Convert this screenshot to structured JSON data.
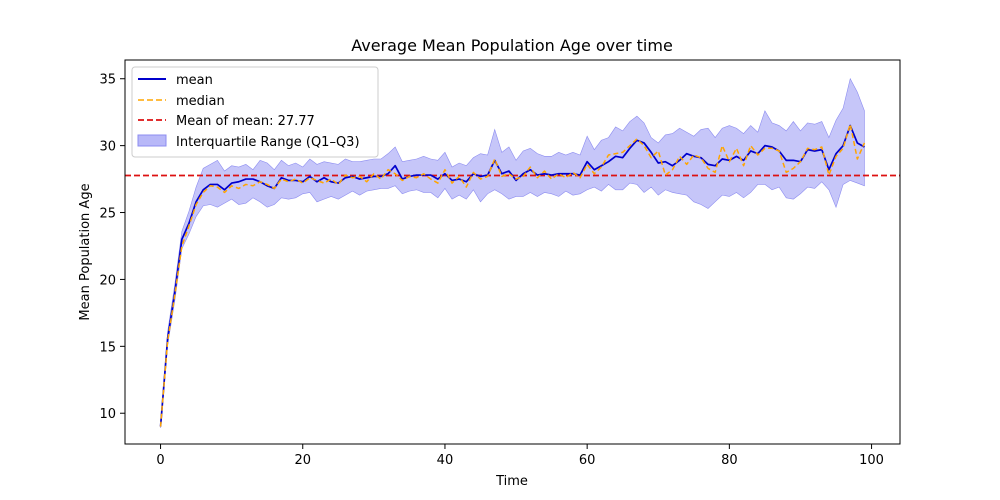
{
  "chart_data": {
    "type": "line",
    "title": "Average Mean Population Age over time",
    "xlabel": "Time",
    "ylabel": "Mean Population Age",
    "xlim": [
      -5,
      104
    ],
    "ylim": [
      7.7,
      36.4
    ],
    "x_ticks": [
      0,
      20,
      40,
      60,
      80,
      100
    ],
    "y_ticks": [
      10,
      15,
      20,
      25,
      30,
      35
    ],
    "grid": false,
    "legend_position": "upper-left",
    "legend": {
      "mean": "mean",
      "median": "median",
      "mean_of_mean": "Mean of mean: 27.77",
      "iqr": "Interquartile Range (Q1–Q3)"
    },
    "colors": {
      "mean": "#0000cc",
      "median": "#ffa500",
      "mean_of_mean": "#dd1111",
      "iqr_fill": "#b8b8f8",
      "iqr_edge": "#8c8cf0"
    },
    "mean_of_mean_value": 27.77,
    "x": [
      0,
      1,
      2,
      3,
      4,
      5,
      6,
      7,
      8,
      9,
      10,
      11,
      12,
      13,
      14,
      15,
      16,
      17,
      18,
      19,
      20,
      21,
      22,
      23,
      24,
      25,
      26,
      27,
      28,
      29,
      30,
      31,
      32,
      33,
      34,
      35,
      36,
      37,
      38,
      39,
      40,
      41,
      42,
      43,
      44,
      45,
      46,
      47,
      48,
      49,
      50,
      51,
      52,
      53,
      54,
      55,
      56,
      57,
      58,
      59,
      60,
      61,
      62,
      63,
      64,
      65,
      66,
      67,
      68,
      69,
      70,
      71,
      72,
      73,
      74,
      75,
      76,
      77,
      78,
      79,
      80,
      81,
      82,
      83,
      84,
      85,
      86,
      87,
      88,
      89,
      90,
      91,
      92,
      93,
      94,
      95,
      96,
      97,
      98,
      99
    ],
    "series": [
      {
        "name": "mean",
        "values": [
          9.0,
          15.6,
          19.0,
          23.0,
          24.2,
          25.8,
          26.7,
          27.1,
          27.1,
          26.7,
          27.2,
          27.3,
          27.5,
          27.5,
          27.3,
          27.0,
          26.8,
          27.6,
          27.4,
          27.4,
          27.3,
          27.7,
          27.3,
          27.6,
          27.3,
          27.2,
          27.6,
          27.7,
          27.5,
          27.6,
          27.7,
          27.7,
          27.9,
          28.5,
          27.5,
          27.7,
          27.8,
          27.8,
          27.8,
          27.5,
          27.9,
          27.4,
          27.5,
          27.3,
          27.9,
          27.7,
          27.8,
          28.9,
          27.9,
          28.1,
          27.4,
          27.9,
          28.2,
          27.8,
          27.9,
          27.8,
          27.9,
          27.9,
          27.9,
          27.8,
          28.8,
          28.2,
          28.5,
          28.8,
          29.2,
          29.1,
          29.8,
          30.4,
          30.2,
          29.5,
          28.7,
          28.8,
          28.5,
          28.9,
          29.4,
          29.2,
          29.1,
          28.6,
          28.5,
          29.0,
          28.9,
          29.2,
          28.9,
          29.6,
          29.4,
          30.0,
          29.9,
          29.6,
          28.9,
          28.9,
          28.8,
          29.7,
          29.6,
          29.7,
          28.2,
          29.4,
          30.0,
          31.5,
          30.2,
          29.9
        ]
      },
      {
        "name": "median",
        "values": [
          9.0,
          15.4,
          18.8,
          22.5,
          24.0,
          25.6,
          26.5,
          27.0,
          26.9,
          26.5,
          27.0,
          26.8,
          27.1,
          27.0,
          27.3,
          27.1,
          26.8,
          27.5,
          27.3,
          27.5,
          27.2,
          27.6,
          27.4,
          27.2,
          27.5,
          27.1,
          27.8,
          27.6,
          27.7,
          27.3,
          27.9,
          27.5,
          28.2,
          27.9,
          27.4,
          27.7,
          27.6,
          27.9,
          27.5,
          27.2,
          28.2,
          27.2,
          27.7,
          26.9,
          28.0,
          27.5,
          27.7,
          29.0,
          27.7,
          27.9,
          27.5,
          27.7,
          28.4,
          27.6,
          28.1,
          27.5,
          27.9,
          27.6,
          28.0,
          27.6,
          28.6,
          27.9,
          28.4,
          29.3,
          29.4,
          29.5,
          30.0,
          30.5,
          30.0,
          29.1,
          29.6,
          27.8,
          28.2,
          29.2,
          28.6,
          29.3,
          29.1,
          28.3,
          28.0,
          30.0,
          28.8,
          29.8,
          28.5,
          30.0,
          29.3,
          29.8,
          29.8,
          29.6,
          28.0,
          28.3,
          28.8,
          29.8,
          29.7,
          29.9,
          27.8,
          29.2,
          29.8,
          31.6,
          29.0,
          30.2
        ]
      }
    ],
    "iqr_q1": [
      8.9,
      15.1,
      18.4,
      22.3,
      23.4,
      24.7,
      25.5,
      25.6,
      25.4,
      25.7,
      26.0,
      25.6,
      25.7,
      26.1,
      25.8,
      25.4,
      25.6,
      26.1,
      26.0,
      26.1,
      26.4,
      26.5,
      25.8,
      26.0,
      26.2,
      26.0,
      26.3,
      26.6,
      26.3,
      26.6,
      26.7,
      26.8,
      26.8,
      27.0,
      26.4,
      26.6,
      26.7,
      26.5,
      26.5,
      26.1,
      26.8,
      26.0,
      26.3,
      26.0,
      26.7,
      25.8,
      26.4,
      26.7,
      26.4,
      26.0,
      26.2,
      26.2,
      26.5,
      26.2,
      26.5,
      26.4,
      26.2,
      26.6,
      26.3,
      26.4,
      26.7,
      26.9,
      26.6,
      27.1,
      26.7,
      26.7,
      27.2,
      27.1,
      26.5,
      26.9,
      26.3,
      26.7,
      26.5,
      26.4,
      26.3,
      25.8,
      25.6,
      25.3,
      25.8,
      26.3,
      26.2,
      26.5,
      26.1,
      26.5,
      27.1,
      27.1,
      26.7,
      26.9,
      26.1,
      26.0,
      26.4,
      26.9,
      26.8,
      27.3,
      26.7,
      25.4,
      27.1,
      27.4,
      27.2,
      27.0
    ],
    "iqr_q3": [
      9.1,
      16.1,
      19.6,
      23.6,
      25.1,
      26.9,
      28.3,
      28.6,
      28.9,
      28.1,
      28.5,
      28.4,
      28.6,
      28.2,
      28.9,
      28.7,
      28.2,
      28.9,
      28.5,
      28.7,
      28.4,
      29.0,
      28.6,
      28.8,
      28.7,
      28.6,
      29.0,
      28.8,
      28.8,
      28.9,
      29.0,
      29.0,
      29.4,
      29.9,
      28.8,
      28.9,
      29.0,
      29.2,
      29.0,
      28.9,
      29.5,
      28.4,
      28.7,
      28.5,
      29.1,
      29.4,
      29.3,
      31.2,
      29.5,
      29.9,
      28.9,
      29.6,
      29.8,
      29.4,
      29.2,
      29.2,
      29.5,
      29.3,
      29.5,
      29.3,
      30.7,
      29.7,
      30.4,
      30.6,
      31.4,
      31.1,
      31.8,
      32.2,
      31.7,
      30.6,
      30.2,
      30.8,
      30.9,
      31.3,
      31.0,
      30.7,
      31.2,
      31.3,
      30.6,
      31.3,
      31.5,
      31.3,
      30.9,
      31.5,
      31.0,
      32.6,
      31.7,
      31.5,
      31.1,
      31.8,
      31.1,
      31.7,
      31.6,
      31.8,
      30.6,
      31.9,
      32.8,
      35.0,
      34.0,
      32.6
    ]
  }
}
